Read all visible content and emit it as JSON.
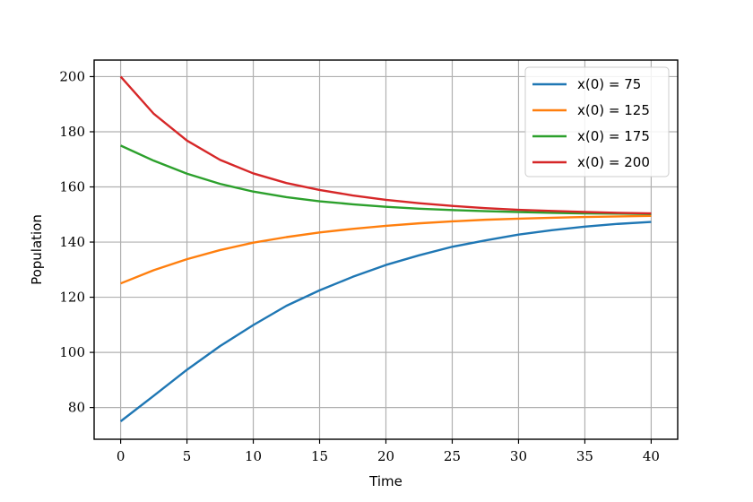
{
  "chart_data": {
    "type": "line",
    "xlabel": "Time",
    "ylabel": "Population",
    "xlim": [
      -2,
      42
    ],
    "ylim": [
      68.5,
      206
    ],
    "xticks": [
      0,
      5,
      10,
      15,
      20,
      25,
      30,
      35,
      40
    ],
    "yticks": [
      80,
      100,
      120,
      140,
      160,
      180,
      200
    ],
    "grid": true,
    "legend_position": "top-right",
    "series": [
      {
        "name": "x(0) = 75",
        "color": "#1f77b4",
        "x": [
          0,
          2.5,
          5,
          7.5,
          10,
          12.5,
          15,
          17.5,
          20,
          22.5,
          25,
          27.5,
          30,
          32.5,
          35,
          37.5,
          40
        ],
        "y": [
          75,
          84.3,
          93.7,
          102.3,
          109.9,
          116.9,
          122.5,
          127.4,
          131.7,
          135.2,
          138.3,
          140.6,
          142.7,
          144.3,
          145.6,
          146.6,
          147.3
        ]
      },
      {
        "name": "x(0) = 125",
        "color": "#ff7f0e",
        "x": [
          0,
          2.5,
          5,
          7.5,
          10,
          12.5,
          15,
          17.5,
          20,
          22.5,
          25,
          27.5,
          30,
          32.5,
          35,
          37.5,
          40
        ],
        "y": [
          125,
          129.8,
          133.8,
          137.1,
          139.8,
          141.8,
          143.5,
          144.8,
          145.9,
          146.8,
          147.5,
          148.1,
          148.5,
          148.8,
          149.1,
          149.3,
          149.5
        ]
      },
      {
        "name": "x(0) = 175",
        "color": "#2ca02c",
        "x": [
          0,
          2.5,
          5,
          7.5,
          10,
          12.5,
          15,
          17.5,
          20,
          22.5,
          25,
          27.5,
          30,
          32.5,
          35,
          37.5,
          40
        ],
        "y": [
          175,
          169.5,
          164.8,
          161.1,
          158.3,
          156.3,
          154.8,
          153.7,
          152.8,
          152.1,
          151.6,
          151.2,
          150.9,
          150.6,
          150.4,
          150.3,
          150.2
        ]
      },
      {
        "name": "x(0) = 200",
        "color": "#d62728",
        "x": [
          0,
          2.5,
          5,
          7.5,
          10,
          12.5,
          15,
          17.5,
          20,
          22.5,
          25,
          27.5,
          30,
          32.5,
          35,
          37.5,
          40
        ],
        "y": [
          200,
          186.5,
          176.8,
          169.8,
          164.9,
          161.4,
          158.9,
          156.9,
          155.3,
          154.1,
          153.1,
          152.3,
          151.7,
          151.3,
          150.9,
          150.6,
          150.4
        ]
      }
    ]
  }
}
